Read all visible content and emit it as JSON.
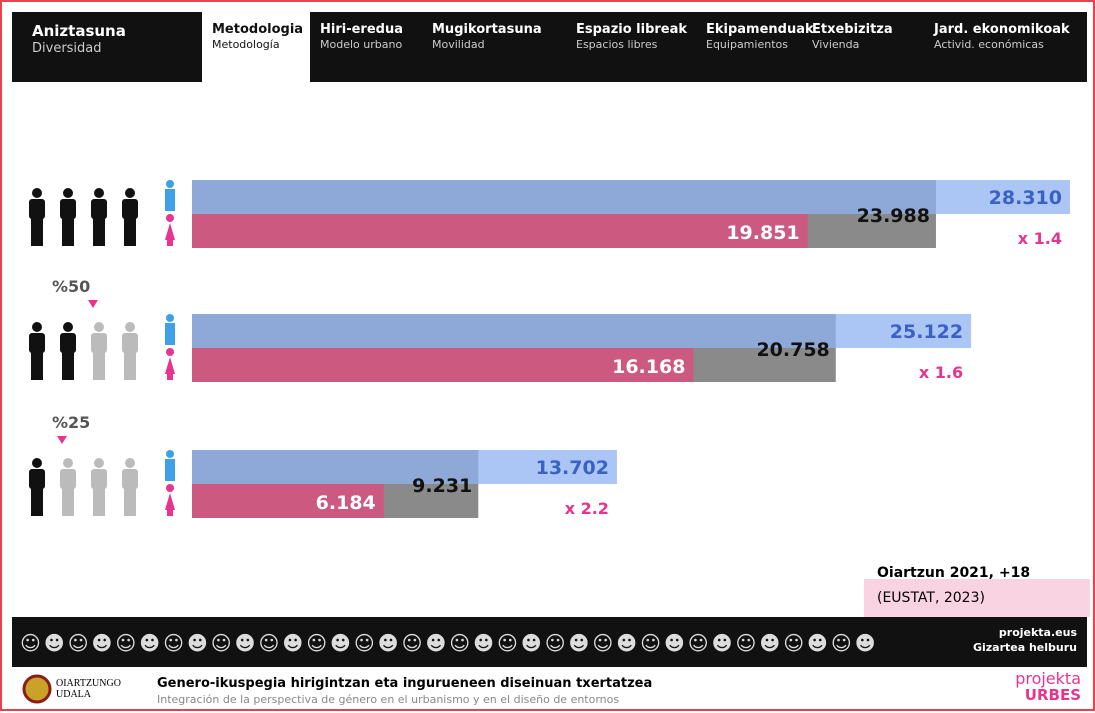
{
  "header": {
    "section": {
      "title": "Aniztasuna",
      "subtitle": "Diversidad"
    },
    "tabs": [
      {
        "title": "Metodologia",
        "subtitle": "Metodología"
      },
      {
        "title": "Hiri-eredua",
        "subtitle": "Modelo urbano"
      },
      {
        "title": "Mugikortasuna",
        "subtitle": "Movilidad"
      },
      {
        "title": "Espazio libreak",
        "subtitle": "Espacios libres"
      },
      {
        "title": "Ekipamenduak",
        "subtitle": "Equipamientos"
      },
      {
        "title": "Etxebizitza",
        "subtitle": "Vivienda"
      },
      {
        "title": "Jard. ekonomikoak",
        "subtitle": "Activid. económicas"
      }
    ]
  },
  "groups": [
    {
      "men": {
        "value": 28310,
        "label": "28.310"
      },
      "women": {
        "value": 19851,
        "label": "19.851"
      },
      "total": {
        "value": 23988,
        "label": "23.988"
      },
      "ratio": "x 1.4"
    },
    {
      "share": "%50",
      "men": {
        "value": 25122,
        "label": "25.122"
      },
      "women": {
        "value": 16168,
        "label": "16.168"
      },
      "total": {
        "value": 20758,
        "label": "20.758"
      },
      "ratio": "x 1.6"
    },
    {
      "share": "%25",
      "men": {
        "value": 13702,
        "label": "13.702"
      },
      "women": {
        "value": 6184,
        "label": "6.184"
      },
      "total": {
        "value": 9231,
        "label": "9.231"
      },
      "ratio": "x 2.2"
    }
  ],
  "source": {
    "title": "Oiartzun 2021, +18",
    "note": "(EUSTAT, 2023)"
  },
  "footer": {
    "site": "projekta.eus",
    "motto": "Gizartea helburu",
    "council": "OIARTZUNGO UDALA",
    "title": "Genero-ikuspegia hirigintzan eta ingurueneen diseinuan txertatzea",
    "subtitle": "Integración de la perspectiva de género en el urbanismo y en el diseño de entornos",
    "brand": "projekta",
    "brand2": "URBES"
  }
}
